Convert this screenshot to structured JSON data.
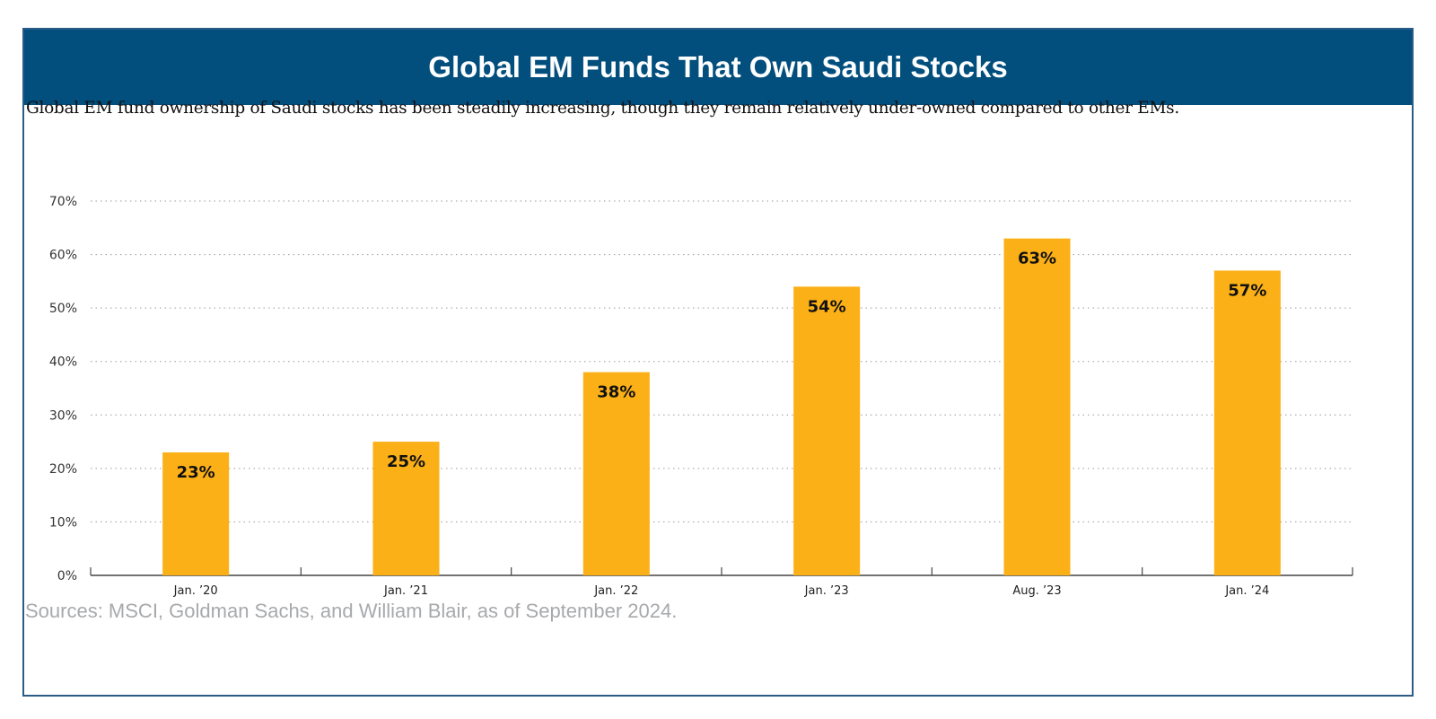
{
  "header": {
    "title": "Global EM Funds That Own Saudi Stocks"
  },
  "subtitle": "Global EM fund ownership of Saudi stocks has been steadily increasing, though they remain relatively under-owned compared to other EMs.",
  "source": "Sources: MSCI, Goldman Sachs, and William Blair, as of September 2024.",
  "colors": {
    "header_bg": "#024f7e",
    "bar": "#fbb017",
    "frame": "#2b5b86",
    "source_text": "#a7a9ac"
  },
  "chart_data": {
    "type": "bar",
    "title": "Global EM Funds That Own Saudi Stocks",
    "xlabel": "",
    "ylabel": "",
    "categories": [
      "Jan. ’20",
      "Jan. ’21",
      "Jan. ’22",
      "Jan. ’23",
      "Aug. ’23",
      "Jan. ’24"
    ],
    "values": [
      23,
      25,
      38,
      54,
      63,
      57
    ],
    "data_labels": [
      "23%",
      "25%",
      "38%",
      "54%",
      "63%",
      "57%"
    ],
    "ylim": [
      0,
      70
    ],
    "yticks": [
      0,
      10,
      20,
      30,
      40,
      50,
      60,
      70
    ],
    "ytick_labels": [
      "0%",
      "10%",
      "20%",
      "30%",
      "40%",
      "50%",
      "60%",
      "70%"
    ],
    "grid": true,
    "grid_style": "dotted",
    "legend": "none"
  }
}
